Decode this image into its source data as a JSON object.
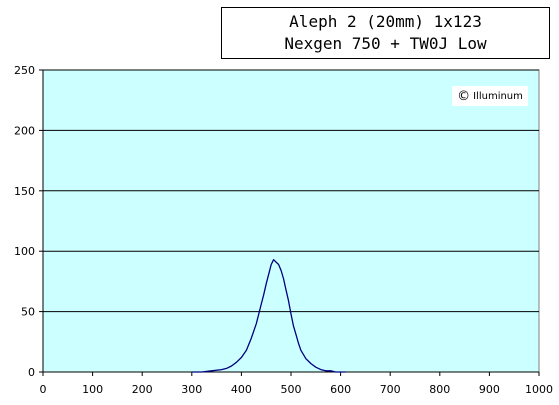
{
  "chart_data": {
    "type": "line",
    "title_lines": [
      "Aleph 2 (20mm) 1x123",
      "Nexgen 750 + TW0J Low"
    ],
    "watermark": "Illuminum",
    "watermark_symbol": "©",
    "xlabel": "",
    "ylabel": "",
    "xlim": [
      0,
      1000
    ],
    "ylim": [
      0,
      250
    ],
    "xticks": [
      0,
      100,
      200,
      300,
      400,
      500,
      600,
      700,
      800,
      900,
      1000
    ],
    "yticks": [
      0,
      50,
      100,
      150,
      200,
      250
    ],
    "grid": "horizontal",
    "legend": "none",
    "plot_background": "#ccffff",
    "line_color": "#000080",
    "series": [
      {
        "x": [
          300,
          320,
          340,
          360,
          370,
          380,
          390,
          400,
          410,
          420,
          430,
          440,
          445,
          450,
          455,
          460,
          465,
          470,
          475,
          480,
          485,
          490,
          495,
          500,
          505,
          510,
          515,
          520,
          530,
          540,
          550,
          560,
          570,
          580,
          590,
          600,
          610
        ],
        "y": [
          0,
          0,
          1,
          2,
          3,
          5,
          8,
          12,
          18,
          28,
          40,
          56,
          64,
          73,
          81,
          89,
          93,
          91,
          89,
          84,
          77,
          68,
          59,
          48,
          38,
          31,
          24,
          18,
          11,
          7,
          4,
          2,
          1,
          1,
          0,
          0,
          0
        ]
      }
    ]
  }
}
